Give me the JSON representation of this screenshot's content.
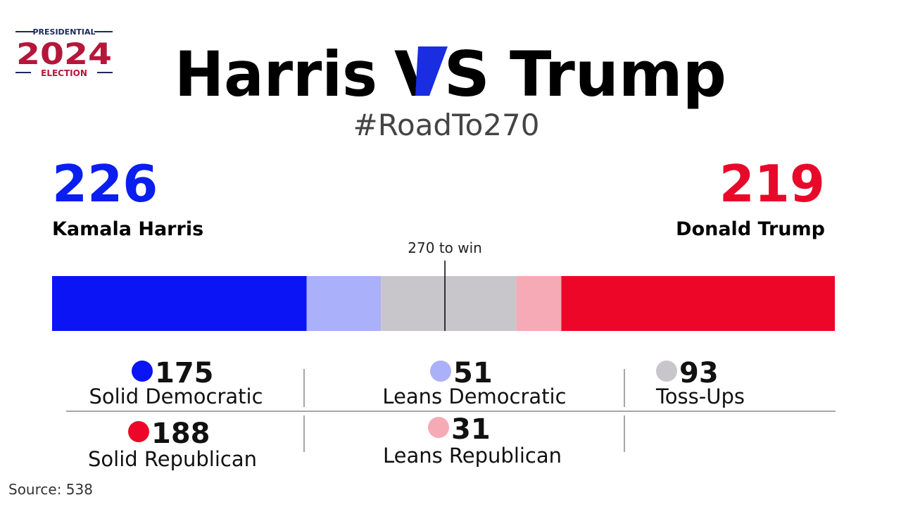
{
  "logo": {
    "top": "PRESIDENTIAL",
    "year": "2024",
    "bottom": "ELECTION"
  },
  "title": {
    "left": "Harris",
    "middle": "VS",
    "right": "Trump"
  },
  "subtitle": "#RoadTo270",
  "candidates": [
    {
      "name": "Kamala Harris",
      "votes": 226,
      "color": "#0a1ef0"
    },
    {
      "name": "Donald Trump",
      "votes": 219,
      "color": "#e8082a"
    }
  ],
  "threshold": {
    "value": 270,
    "label": "270 to win"
  },
  "segments": [
    {
      "name": "Solid Democratic",
      "value": 175,
      "color": "#0a14f5"
    },
    {
      "name": "Leans Democratic",
      "value": 51,
      "color": "#aab0fa"
    },
    {
      "name": "Toss-Ups",
      "value": 93,
      "color": "#c8c6ca"
    },
    {
      "name": "Leans Republican",
      "value": 31,
      "color": "#f6aab6"
    },
    {
      "name": "Solid Republican",
      "value": 188,
      "color": "#ee0628"
    }
  ],
  "source": "Source: 538"
}
